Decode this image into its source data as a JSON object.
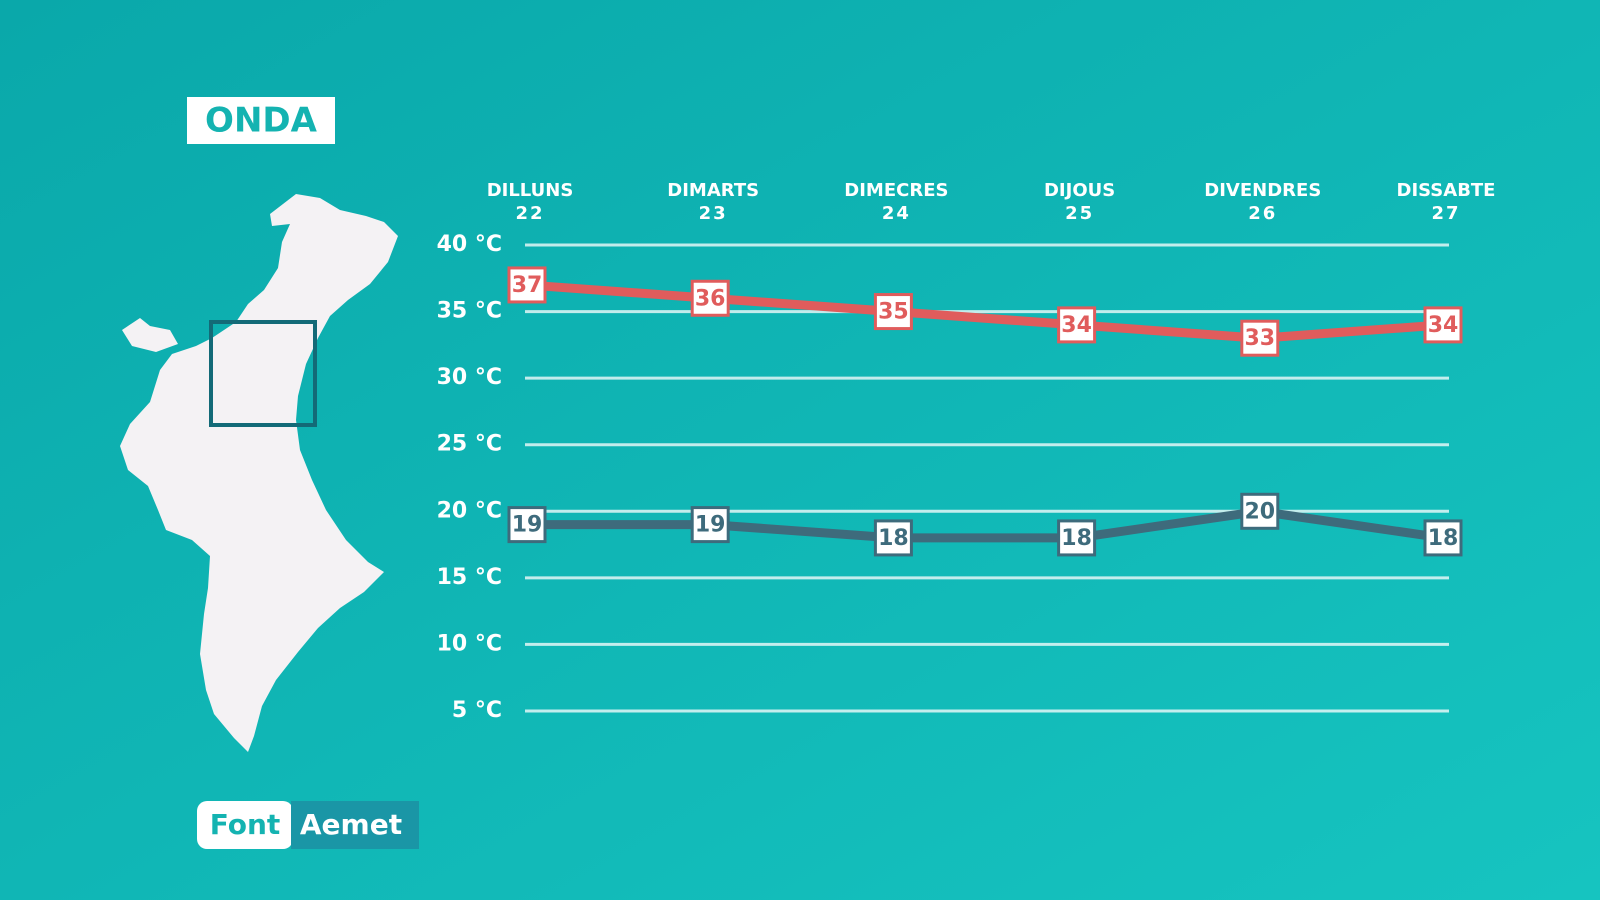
{
  "header": {
    "location": "ONDA"
  },
  "footer": {
    "source_label": "Font",
    "source": "Aemet"
  },
  "chart_data": {
    "type": "line",
    "categories": [
      "DILLUNS",
      "DIMARTS",
      "DIMECRES",
      "DIJOUS",
      "DIVENDRES",
      "DISSABTE"
    ],
    "category_dates": [
      "22",
      "23",
      "24",
      "25",
      "26",
      "27"
    ],
    "series": [
      {
        "color": "#e05c5c",
        "values": [
          37,
          36,
          35,
          34,
          33,
          34
        ]
      },
      {
        "color": "#3e6b7c",
        "values": [
          19,
          19,
          18,
          18,
          20,
          18
        ]
      }
    ],
    "ylim": [
      5,
      40
    ],
    "yticks": [
      {
        "value": 5,
        "label": "5 °C"
      },
      {
        "value": 10,
        "label": "10 °C"
      },
      {
        "value": 15,
        "label": "15 °C"
      },
      {
        "value": 20,
        "label": "20 °C"
      },
      {
        "value": 25,
        "label": "25 °C"
      },
      {
        "value": 30,
        "label": "30 °C"
      },
      {
        "value": 35,
        "label": "35 °C"
      },
      {
        "value": 40,
        "label": "40 °C"
      }
    ],
    "grid": true
  }
}
